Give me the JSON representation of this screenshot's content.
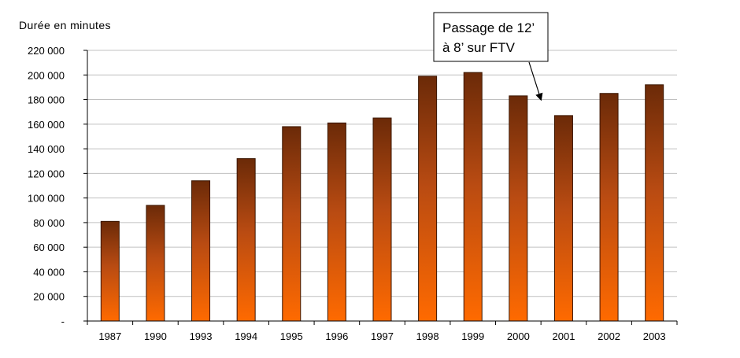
{
  "chart_data": {
    "type": "bar",
    "title": "",
    "ylabel": "Durée en minutes",
    "xlabel": "",
    "categories": [
      "1987",
      "1990",
      "1993",
      "1994",
      "1995",
      "1996",
      "1997",
      "1998",
      "1999",
      "2000",
      "2001",
      "2002",
      "2003"
    ],
    "values": [
      81000,
      94000,
      114000,
      132000,
      158000,
      161000,
      165000,
      199000,
      202000,
      183000,
      167000,
      185000,
      192000
    ],
    "ylim": [
      0,
      220000
    ],
    "yticks": [
      0,
      20000,
      40000,
      60000,
      80000,
      100000,
      120000,
      140000,
      160000,
      180000,
      200000,
      220000
    ],
    "ytick_labels": [
      "-",
      "20 000",
      "40 000",
      "60 000",
      "80 000",
      "100 000",
      "120 000",
      "140 000",
      "160 000",
      "180 000",
      "200 000",
      "220 000"
    ],
    "grid": true,
    "colors": {
      "bar_top": "#6b2a08",
      "bar_bottom": "#ff6a00",
      "bar_outline": "#3a1500",
      "grid": "#c0c0c0",
      "axis": "#000000"
    },
    "annotation": {
      "lines": [
        "Passage de 12’",
        "à 8’ sur FTV"
      ],
      "points_to": "2001"
    }
  }
}
